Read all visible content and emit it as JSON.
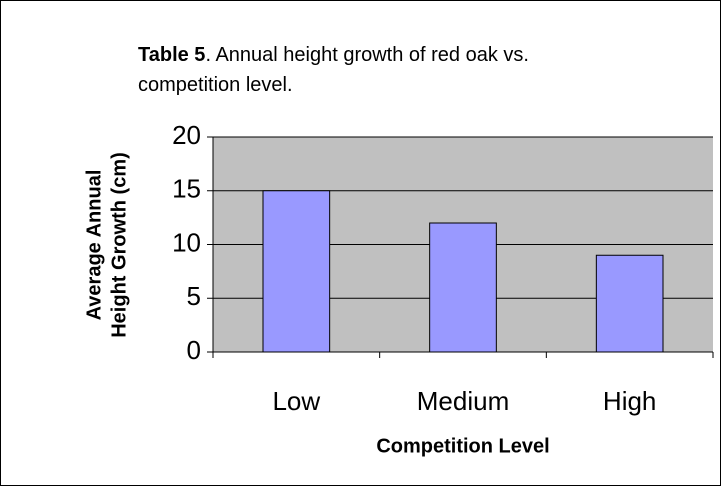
{
  "chart_data": {
    "type": "bar",
    "title": {
      "label": "Table 5",
      "text": ". Annual height growth of red oak vs. competition level."
    },
    "xlabel": "Competition Level",
    "ylabel": [
      "Average Annual",
      "Height Growth (cm)"
    ],
    "categories": [
      "Low",
      "Medium",
      "High"
    ],
    "values": [
      15,
      12,
      9
    ],
    "color": "#9999ff",
    "plot_background": "#c0c0c0",
    "ylim": [
      0,
      20
    ],
    "yticks": [
      0,
      5,
      10,
      15,
      20
    ],
    "grid": true
  }
}
